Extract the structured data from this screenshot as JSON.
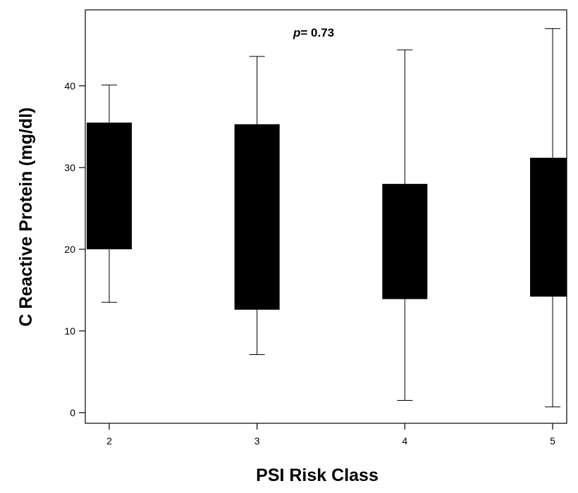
{
  "chart_data": {
    "type": "boxplot",
    "title": "",
    "xlabel": "PSI Risk Class",
    "ylabel": "C Reactive Protein (mg/dl)",
    "categories": [
      "2",
      "3",
      "4",
      "5"
    ],
    "boxes": [
      {
        "category": "2",
        "whisker_low": 13.5,
        "q1": 20.0,
        "q3": 35.5,
        "whisker_high": 40.1
      },
      {
        "category": "3",
        "whisker_low": 7.1,
        "q1": 12.6,
        "q3": 35.3,
        "whisker_high": 43.6
      },
      {
        "category": "4",
        "whisker_low": 1.5,
        "q1": 13.9,
        "q3": 28.0,
        "whisker_high": 44.4
      },
      {
        "category": "5",
        "whisker_low": 0.7,
        "q1": 14.2,
        "q3": 31.2,
        "whisker_high": 47.0
      }
    ],
    "yticks": [
      0,
      10,
      20,
      30,
      40
    ],
    "ylim": [
      -1.3,
      49.3
    ],
    "annotation": {
      "italic": "p",
      "text": "= 0.73"
    },
    "box_color": "#000000"
  }
}
